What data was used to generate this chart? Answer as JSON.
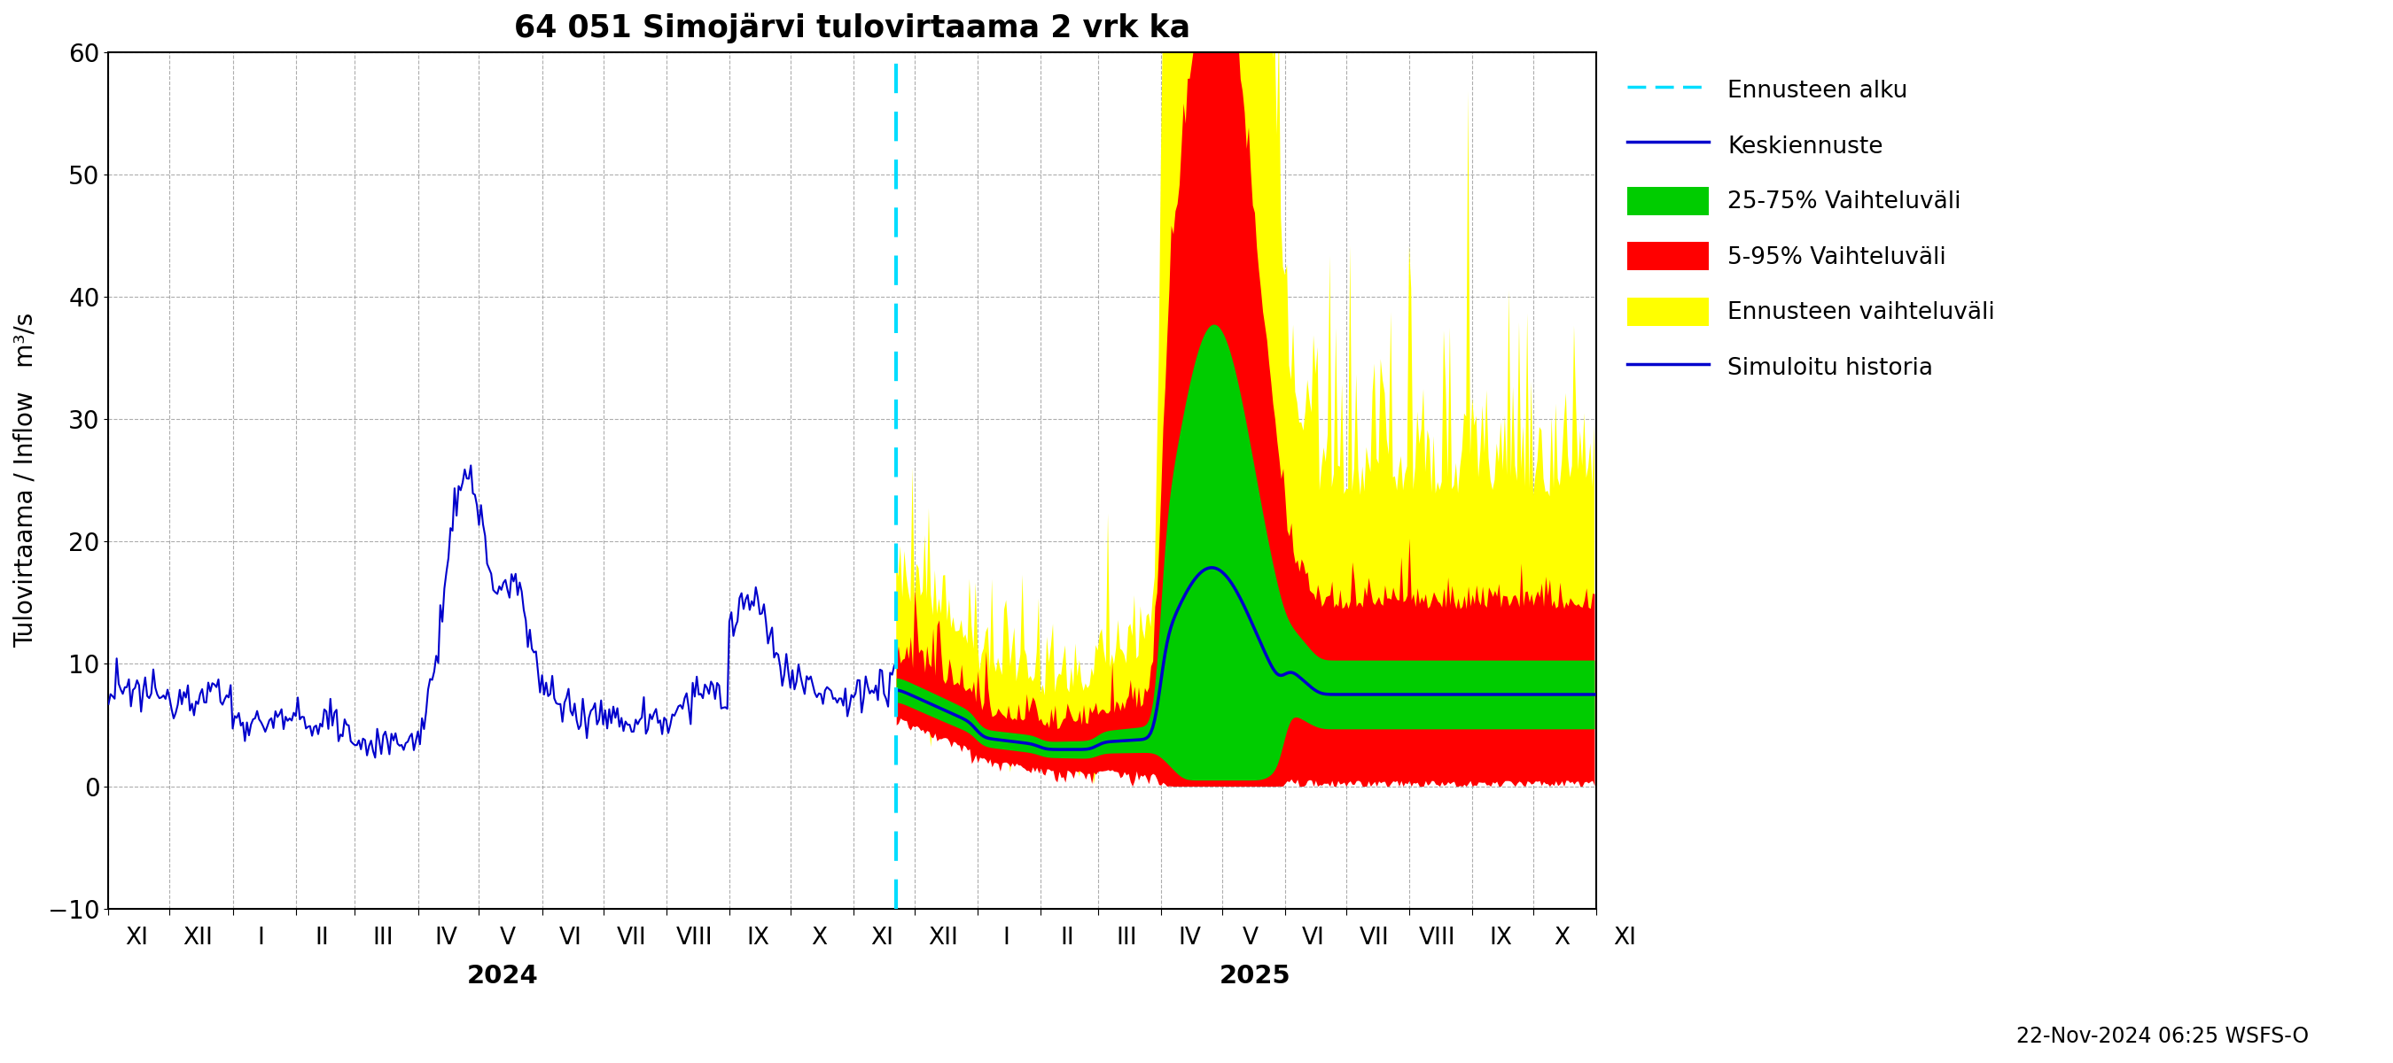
{
  "title": "64 051 Simojärvi tulovirtaama 2 vrk ka",
  "ylabel": "Tulovirtaama / Inflow   m³/s",
  "ylim": [
    -10,
    60
  ],
  "yticks": [
    -10,
    0,
    10,
    20,
    30,
    40,
    50,
    60
  ],
  "background_color": "#ffffff",
  "grid_color": "#999999",
  "forecast_line_color": "#00ddff",
  "median_color": "#0000cc",
  "p25_75_color": "#00cc00",
  "p5_95_color": "#ff0000",
  "ensemble_color": "#ffff00",
  "history_color": "#0000cc",
  "timestamp_text": "22-Nov-2024 06:25 WSFS-O",
  "legend_labels": [
    "Ennusteen alku",
    "Keskiennuste",
    "25-75% Vaihteluväli",
    "5-95% Vaihteluväli",
    "Ennusteen vaihteluväli",
    "Simuloitu historia"
  ],
  "year_label_2024": "2024",
  "year_label_2025": "2025"
}
